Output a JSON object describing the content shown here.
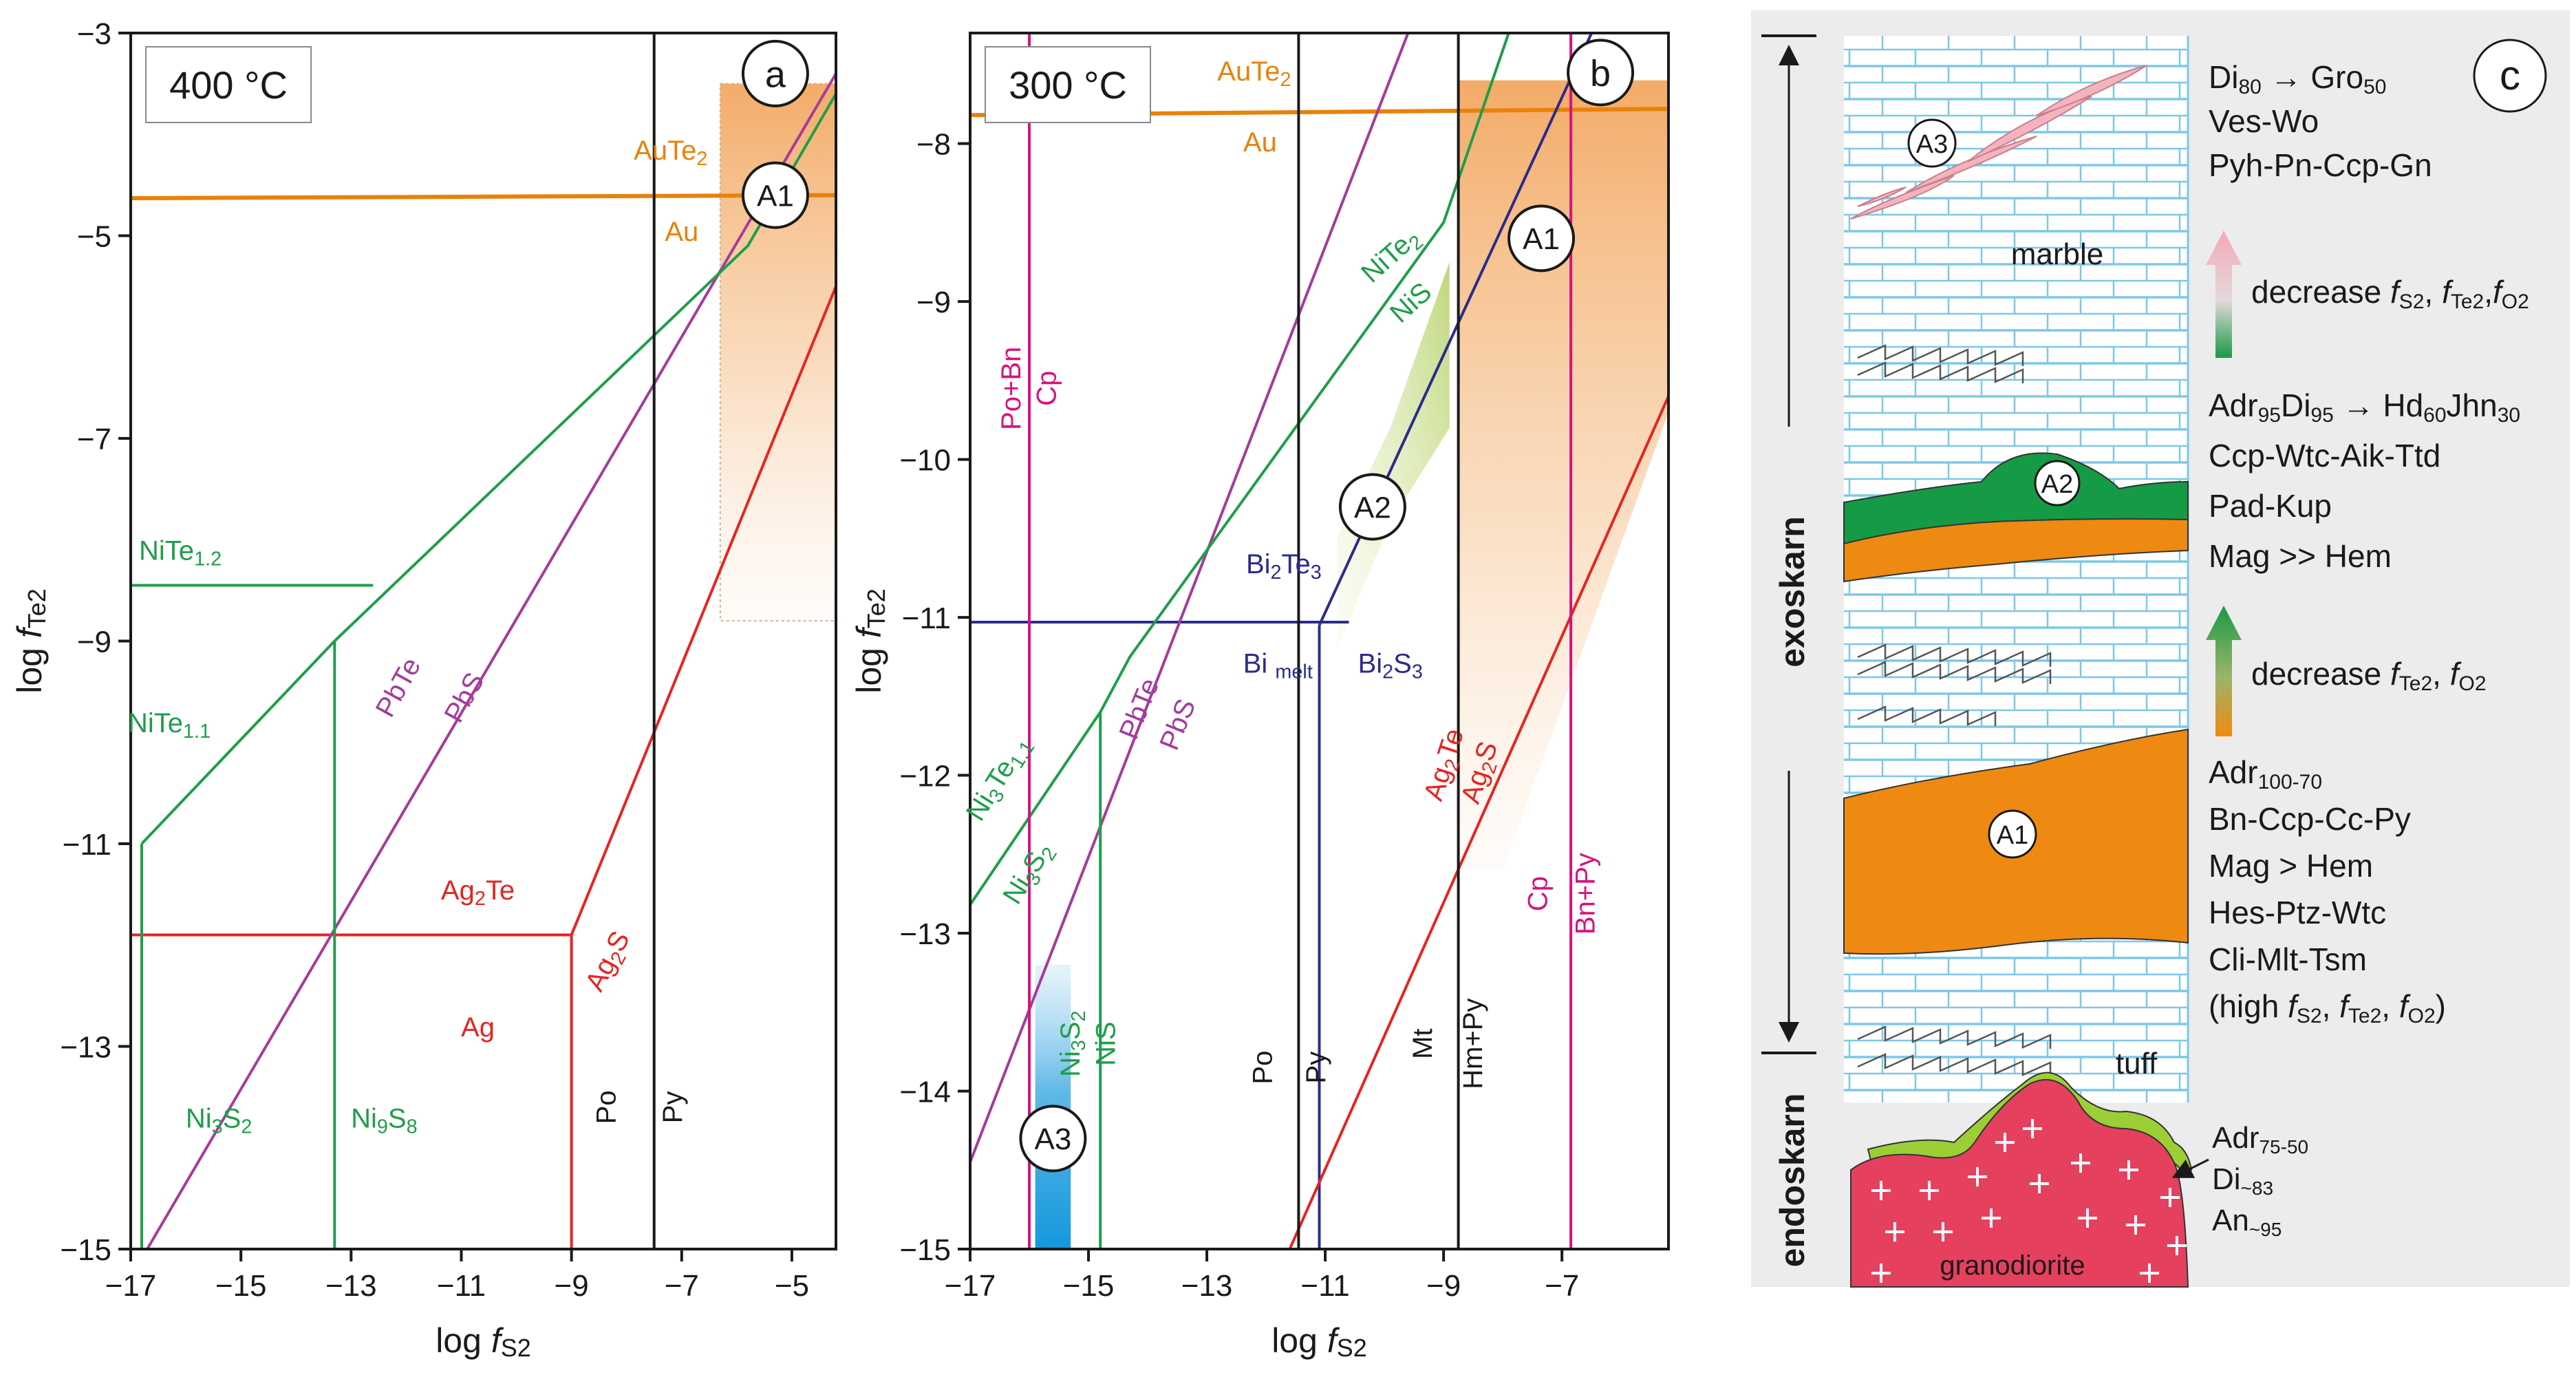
{
  "colors": {
    "black": "#1a1a1a",
    "orange": "#e8820a",
    "green": "#1f9e4a",
    "purple": "#a43c9a",
    "red": "#e52521",
    "navy": "#2b2b8c",
    "magenta": "#d6137f",
    "skarn_orange": "#ee8a12",
    "skarn_green": "#159a45",
    "granodiorite": "#e6405f",
    "marble_blue": "#7cc8e8",
    "panel_gray": "#ececec"
  },
  "chart_data": [
    {
      "type": "line",
      "panel_letter": "a",
      "temperature_label": "400 °C",
      "xlabel_prefix": "log ",
      "xlabel_f": "f",
      "xlabel_sub": "S2",
      "ylabel_prefix": "log ",
      "ylabel_f": "f",
      "ylabel_sub": "Te2",
      "xlim": [
        -17,
        -4.2
      ],
      "ylim": [
        -15,
        -3
      ],
      "xticks": [
        -17,
        -15,
        -13,
        -11,
        -9,
        -7,
        -5
      ],
      "yticks": [
        -15,
        -13,
        -11,
        -9,
        -7,
        -5,
        -3
      ],
      "xtick_labels": [
        "−17",
        "−15",
        "−13",
        "−11",
        "−9",
        "−7",
        "−5"
      ],
      "ytick_labels": [
        "−15",
        "−13",
        "−11",
        "−9",
        "−7",
        "−5",
        "−3"
      ],
      "lines": [
        {
          "id": "au-aute2",
          "color": "orange",
          "width": 6,
          "points": [
            [
              -17,
              -4.63
            ],
            [
              -4.2,
              -4.6
            ]
          ]
        },
        {
          "id": "ag-ag2te",
          "color": "red",
          "width": 4,
          "points": [
            [
              -17,
              -11.9
            ],
            [
              -9.0,
              -11.9
            ]
          ]
        },
        {
          "id": "ag2s-boundary",
          "color": "red",
          "width": 4,
          "points": [
            [
              -9.0,
              -11.9
            ],
            [
              -4.2,
              -5.5
            ]
          ]
        },
        {
          "id": "ag-ag2s",
          "color": "red",
          "width": 4,
          "points": [
            [
              -9.0,
              -11.9
            ],
            [
              -9.0,
              -15
            ]
          ]
        },
        {
          "id": "pbte-pbs",
          "color": "purple",
          "width": 4,
          "points": [
            [
              -16.7,
              -15
            ],
            [
              -4.2,
              -3.4
            ]
          ]
        },
        {
          "id": "ni-boundary",
          "color": "green",
          "width": 4,
          "points": [
            [
              -16.8,
              -11.0
            ],
            [
              -13.3,
              -9.0
            ],
            [
              -5.8,
              -5.1
            ],
            [
              -4.2,
              -3.6
            ]
          ]
        },
        {
          "id": "nite12-nite11",
          "color": "green",
          "width": 4,
          "points": [
            [
              -17,
              -8.45
            ],
            [
              -12.6,
              -8.45
            ]
          ]
        },
        {
          "id": "ni-low-vert",
          "color": "green",
          "width": 4,
          "points": [
            [
              -16.8,
              -11.0
            ],
            [
              -16.8,
              -15
            ]
          ]
        },
        {
          "id": "ni3s2-ni9s8",
          "color": "green",
          "width": 4,
          "points": [
            [
              -13.3,
              -9.0
            ],
            [
              -13.3,
              -15
            ]
          ]
        },
        {
          "id": "po-py",
          "color": "black",
          "width": 4,
          "points": [
            [
              -7.5,
              -3
            ],
            [
              -7.5,
              -15
            ]
          ]
        }
      ],
      "regions": [
        {
          "id": "A1-region",
          "fill": "url(#gradA)",
          "points": [
            [
              -6.3,
              -3.5
            ],
            [
              -4.2,
              -3.5
            ],
            [
              -4.2,
              -8.8
            ],
            [
              -6.3,
              -8.8
            ]
          ]
        }
      ],
      "frames": [
        {
          "id": "A1-frame",
          "color": "#c9b896",
          "points": [
            [
              -6.3,
              -3.5
            ],
            [
              -4.2,
              -3.5
            ],
            [
              -4.2,
              -8.8
            ],
            [
              -6.3,
              -8.8
            ]
          ]
        }
      ],
      "labels": [
        {
          "text": "AuTe2",
          "x": -7.2,
          "y": -4.25,
          "color": "orange",
          "size": 40,
          "sub": true
        },
        {
          "text": "Au",
          "x": -7.0,
          "y": -5.05,
          "color": "orange",
          "size": 40
        },
        {
          "text": "NiTe1.2",
          "x": -16.1,
          "y": -8.2,
          "color": "green",
          "size": 40,
          "sub": true
        },
        {
          "text": "NiTe1.1",
          "x": -16.3,
          "y": -9.9,
          "color": "green",
          "size": 40,
          "sub": true
        },
        {
          "text": "PbTe",
          "x": -12.0,
          "y": -9.5,
          "color": "purple",
          "size": 40,
          "rotate": -61
        },
        {
          "text": "PbS",
          "x": -10.8,
          "y": -9.6,
          "color": "purple",
          "size": 40,
          "rotate": -61
        },
        {
          "text": "Ag2Te",
          "x": -10.7,
          "y": -11.55,
          "color": "red",
          "size": 40,
          "sub": true
        },
        {
          "text": "Ag",
          "x": -10.7,
          "y": -12.9,
          "color": "red",
          "size": 40
        },
        {
          "text": "Ag2S",
          "x": -8.2,
          "y": -12.2,
          "color": "red",
          "size": 40,
          "rotate": -62,
          "sub": true
        },
        {
          "text": "Ni3S2",
          "x": -15.4,
          "y": -13.8,
          "color": "green",
          "size": 40,
          "sub": true
        },
        {
          "text": "Ni9S8",
          "x": -12.4,
          "y": -13.8,
          "color": "green",
          "size": 40,
          "sub": true
        },
        {
          "text": "Po",
          "x": -8.2,
          "y": -13.6,
          "color": "black",
          "size": 40,
          "rotate": -90
        },
        {
          "text": "Py",
          "x": -7.0,
          "y": -13.6,
          "color": "black",
          "size": 40,
          "rotate": -90
        }
      ],
      "circles": [
        {
          "text": "a",
          "x": -5.3,
          "y": -3.4,
          "r": 47,
          "size": 54
        },
        {
          "text": "A1",
          "x": -5.3,
          "y": -4.6,
          "r": 47,
          "size": 44
        }
      ]
    },
    {
      "type": "line",
      "panel_letter": "b",
      "temperature_label": "300 °C",
      "xlabel_prefix": "log ",
      "xlabel_f": "f",
      "xlabel_sub": "S2",
      "ylabel_prefix": "log ",
      "ylabel_f": "f",
      "ylabel_sub": "Te2",
      "xlim": [
        -17,
        -5.2
      ],
      "ylim": [
        -15,
        -7.3
      ],
      "xticks": [
        -17,
        -15,
        -13,
        -11,
        -9,
        -7
      ],
      "yticks": [
        -15,
        -14,
        -13,
        -12,
        -11,
        -10,
        -9,
        -8
      ],
      "xtick_labels": [
        "−17",
        "−15",
        "−13",
        "−11",
        "−9",
        "−7"
      ],
      "ytick_labels": [
        "−15",
        "−14",
        "−13",
        "−12",
        "−11",
        "−10",
        "−9",
        "−8"
      ],
      "lines": [
        {
          "id": "au-aute2",
          "color": "orange",
          "width": 6,
          "points": [
            [
              -17,
              -7.82
            ],
            [
              -5.2,
              -7.78
            ]
          ]
        },
        {
          "id": "bi-vert",
          "color": "navy",
          "width": 4,
          "points": [
            [
              -11.1,
              -15
            ],
            [
              -11.1,
              -11.05
            ]
          ]
        },
        {
          "id": "bi-horiz",
          "color": "navy",
          "width": 4,
          "points": [
            [
              -17,
              -11.03
            ],
            [
              -10.6,
              -11.03
            ]
          ]
        },
        {
          "id": "bi-diag",
          "color": "navy",
          "width": 4,
          "points": [
            [
              -11.1,
              -11.05
            ],
            [
              -6.5,
              -7.3
            ]
          ]
        },
        {
          "id": "ag2te-ag2s",
          "color": "red",
          "width": 4,
          "points": [
            [
              -11.6,
              -15
            ],
            [
              -5.2,
              -9.6
            ]
          ]
        },
        {
          "id": "pbte-pbs",
          "color": "purple",
          "width": 4,
          "points": [
            [
              -17,
              -14.45
            ],
            [
              -9.6,
              -7.3
            ]
          ]
        },
        {
          "id": "ni-boundary",
          "color": "green",
          "width": 4,
          "points": [
            [
              -17,
              -12.82
            ],
            [
              -14.8,
              -11.6
            ],
            [
              -14.3,
              -11.25
            ],
            [
              -9.0,
              -8.5
            ],
            [
              -7.9,
              -7.3
            ]
          ]
        },
        {
          "id": "ni3s2-nis",
          "color": "green",
          "width": 4,
          "points": [
            [
              -14.8,
              -11.6
            ],
            [
              -14.8,
              -15
            ]
          ]
        },
        {
          "id": "po-py",
          "color": "black",
          "width": 4,
          "points": [
            [
              -11.45,
              -7.3
            ],
            [
              -11.45,
              -15
            ]
          ]
        },
        {
          "id": "mt-hmpy",
          "color": "black",
          "width": 4,
          "points": [
            [
              -8.75,
              -7.3
            ],
            [
              -8.75,
              -15
            ]
          ]
        },
        {
          "id": "pobn-cp",
          "color": "magenta",
          "width": 4,
          "points": [
            [
              -16.0,
              -7.3
            ],
            [
              -16.0,
              -15
            ]
          ]
        },
        {
          "id": "cp-bnpy",
          "color": "magenta",
          "width": 4,
          "points": [
            [
              -6.85,
              -7.3
            ],
            [
              -6.85,
              -15
            ]
          ]
        }
      ],
      "regions": [
        {
          "id": "A1-region",
          "fill": "url(#gradA)",
          "points": [
            [
              -8.75,
              -7.6
            ],
            [
              -5.2,
              -7.6
            ],
            [
              -5.2,
              -9.7
            ],
            [
              -8.0,
              -12.6
            ],
            [
              -8.75,
              -12.6
            ]
          ]
        },
        {
          "id": "A2-region",
          "fill": "url(#gradB)",
          "points": [
            [
              -10.8,
              -10.5
            ],
            [
              -9.9,
              -9.8
            ],
            [
              -8.9,
              -8.75
            ],
            [
              -8.9,
              -9.8
            ],
            [
              -9.9,
              -10.4
            ],
            [
              -10.8,
              -11.2
            ]
          ]
        },
        {
          "id": "A3-region",
          "fill": "url(#gradC)",
          "points": [
            [
              -15.9,
              -13.2
            ],
            [
              -15.3,
              -13.2
            ],
            [
              -15.3,
              -15
            ],
            [
              -15.9,
              -15
            ]
          ]
        }
      ],
      "frames": [],
      "labels": [
        {
          "text": "AuTe2",
          "x": -12.2,
          "y": -7.6,
          "color": "orange",
          "size": 40,
          "sub": true
        },
        {
          "text": "Au",
          "x": -12.1,
          "y": -8.05,
          "color": "orange",
          "size": 40
        },
        {
          "text": "Po+Bn",
          "x": -16.15,
          "y": -9.55,
          "color": "magenta",
          "size": 40,
          "rotate": -90
        },
        {
          "text": "Cp",
          "x": -15.55,
          "y": -9.55,
          "color": "magenta",
          "size": 40,
          "rotate": -90
        },
        {
          "text": "NiTe2",
          "x": -9.8,
          "y": -8.75,
          "color": "green",
          "size": 40,
          "rotate": -42,
          "sub": true
        },
        {
          "text": "NiS",
          "x": -9.45,
          "y": -9.05,
          "color": "green",
          "size": 40,
          "rotate": -42
        },
        {
          "text": "Bi2Te3",
          "x": -11.7,
          "y": -10.72,
          "color": "navy",
          "size": 40,
          "sub": true
        },
        {
          "text": "Bi melt",
          "x": -11.8,
          "y": -11.35,
          "color": "navy",
          "size": 40,
          "sub2": true
        },
        {
          "text": "Bi2S3",
          "x": -9.9,
          "y": -11.35,
          "color": "navy",
          "size": 40,
          "sub": true
        },
        {
          "text": "PbTe",
          "x": -14.0,
          "y": -11.6,
          "color": "purple",
          "size": 40,
          "rotate": -68
        },
        {
          "text": "PbS",
          "x": -13.35,
          "y": -11.7,
          "color": "purple",
          "size": 40,
          "rotate": -68
        },
        {
          "text": "Ni3Te1.1",
          "x": -16.4,
          "y": -12.05,
          "color": "green",
          "size": 40,
          "rotate": -58,
          "sub": true
        },
        {
          "text": "Ni3S2",
          "x": -15.9,
          "y": -12.65,
          "color": "green",
          "size": 40,
          "rotate": -58,
          "sub": true
        },
        {
          "text": "Ag2Te",
          "x": -8.85,
          "y": -11.95,
          "color": "red",
          "size": 40,
          "rotate": -72,
          "sub": true
        },
        {
          "text": "Ag2S",
          "x": -8.25,
          "y": -12.0,
          "color": "red",
          "size": 40,
          "rotate": -72,
          "sub": true
        },
        {
          "text": "Ni3S2",
          "x": -15.15,
          "y": -13.7,
          "color": "green",
          "size": 40,
          "rotate": -90,
          "sub": true
        },
        {
          "text": "NiS",
          "x": -14.55,
          "y": -13.7,
          "color": "green",
          "size": 40,
          "rotate": -90
        },
        {
          "text": "Cp",
          "x": -7.25,
          "y": -12.75,
          "color": "magenta",
          "size": 40,
          "rotate": -90
        },
        {
          "text": "Bn+Py",
          "x": -6.45,
          "y": -12.75,
          "color": "magenta",
          "size": 40,
          "rotate": -90
        },
        {
          "text": "Po",
          "x": -11.9,
          "y": -13.85,
          "color": "black",
          "size": 40,
          "rotate": -90
        },
        {
          "text": "Py",
          "x": -11.0,
          "y": -13.85,
          "color": "black",
          "size": 40,
          "rotate": -90
        },
        {
          "text": "Mt",
          "x": -9.2,
          "y": -13.7,
          "color": "black",
          "size": 40,
          "rotate": -90
        },
        {
          "text": "Hm+Py",
          "x": -8.35,
          "y": -13.7,
          "color": "black",
          "size": 40,
          "rotate": -90
        }
      ],
      "circles": [
        {
          "text": "b",
          "x": -6.35,
          "y": -7.55,
          "r": 47,
          "size": 54
        },
        {
          "text": "A1",
          "x": -7.35,
          "y": -8.6,
          "r": 47,
          "size": 44
        },
        {
          "text": "A2",
          "x": -10.2,
          "y": -10.3,
          "r": 47,
          "size": 44
        },
        {
          "text": "A3",
          "x": -15.6,
          "y": -14.3,
          "r": 47,
          "size": 44
        }
      ]
    }
  ],
  "panel_c": {
    "letter": "c",
    "exoskarn_label": "exoskarn",
    "endoskarn_label": "endoskarn",
    "marble_label": "marble",
    "tuff_label": "tuff",
    "granodiorite_label": "granodiorite",
    "zone_labels": {
      "a3": "A3",
      "a2": "A2",
      "a1": "A1"
    },
    "a3_text": {
      "line1_di": "Di",
      "line1_di_sub": "80",
      "line1_arrow": " → ",
      "line1_gro": "Gro",
      "line1_gro_sub": "50",
      "line2": "Ves-Wo",
      "line3": "Pyh-Pn-Ccp-Gn"
    },
    "decrease1": {
      "prefix": "decrease ",
      "f1": "f",
      "s1": "S2",
      "sep1": ", ",
      "f2": "f",
      "s2": "Te2",
      "sep2": ",",
      "f3": "f",
      "s3": "O2"
    },
    "a2_text": {
      "adr": "Adr",
      "adr_sub": "95",
      "di": "Di",
      "di_sub": "95",
      "arrow": " → ",
      "hd": "Hd",
      "hd_sub": "60",
      "jhn": "Jhn",
      "jhn_sub": "30",
      "line2": "Ccp-Wtc-Aik-Ttd",
      "line3": "Pad-Kup",
      "line4": "Mag >> Hem"
    },
    "decrease2": {
      "prefix": "decrease ",
      "f1": "f",
      "s1": "Te2",
      "sep1": ", ",
      "f2": "f",
      "s2": "O2"
    },
    "a1_text": {
      "adr": "Adr",
      "adr_sub": "100-70",
      "line2": "Bn-Ccp-Cc-Py",
      "line3": "Mag > Hem",
      "line4": "Hes-Ptz-Wtc",
      "line5": "Cli-Mlt-Tsm",
      "l6_a": "(high ",
      "l6_f1": "f",
      "l6_s1": "S2",
      "l6_sep1": ", ",
      "l6_f2": "f",
      "l6_s2": "Te2",
      "l6_sep2": ", ",
      "l6_f3": "f",
      "l6_s3": "O2",
      "l6_end": ")"
    },
    "endo_text": {
      "adr": "Adr",
      "adr_sub": "75-50",
      "di": "Di",
      "di_sub": "~83",
      "an": "An",
      "an_sub": "~95"
    }
  }
}
